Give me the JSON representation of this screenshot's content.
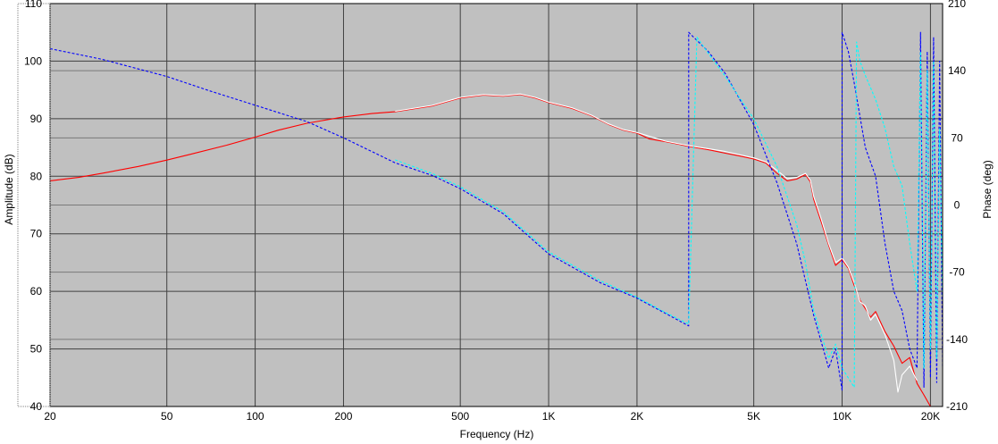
{
  "chart_data": {
    "type": "line",
    "xlabel": "Frequency (Hz)",
    "ylabel": "Amplitude (dB)",
    "y2label": "Phase (deg)",
    "xscale": "log",
    "xlim": [
      20,
      22000
    ],
    "ylim": [
      40,
      110
    ],
    "y2lim": [
      -210,
      210
    ],
    "grid": true,
    "x_ticks": [
      {
        "value": 20,
        "label": "20"
      },
      {
        "value": 50,
        "label": "50"
      },
      {
        "value": 100,
        "label": "100"
      },
      {
        "value": 200,
        "label": "200"
      },
      {
        "value": 500,
        "label": "500"
      },
      {
        "value": 1000,
        "label": "1K"
      },
      {
        "value": 2000,
        "label": "2K"
      },
      {
        "value": 5000,
        "label": "5K"
      },
      {
        "value": 10000,
        "label": "10K"
      },
      {
        "value": 20000,
        "label": "20K"
      }
    ],
    "y_ticks": [
      {
        "value": 40,
        "label": "40"
      },
      {
        "value": 50,
        "label": "50"
      },
      {
        "value": 60,
        "label": "60"
      },
      {
        "value": 70,
        "label": "70"
      },
      {
        "value": 80,
        "label": "80"
      },
      {
        "value": 90,
        "label": "90"
      },
      {
        "value": 100,
        "label": "100"
      },
      {
        "value": 110,
        "label": "110"
      }
    ],
    "y2_ticks": [
      {
        "value": -210,
        "label": "-210"
      },
      {
        "value": -140,
        "label": "-140"
      },
      {
        "value": -70,
        "label": "-70"
      },
      {
        "value": 0,
        "label": "0"
      },
      {
        "value": 70,
        "label": "70"
      },
      {
        "value": 140,
        "label": "140"
      },
      {
        "value": 210,
        "label": "210"
      }
    ],
    "colors": {
      "plot_background": "#c0c0c0",
      "grid": "#404040",
      "amplitude_a": "#ff0000",
      "amplitude_b": "#ffffff",
      "phase_a": "#0000ff",
      "phase_b": "#00ffff"
    },
    "series": [
      {
        "axis": "left",
        "style": "solid",
        "color": "#ff0000",
        "x": [
          20,
          25,
          30,
          40,
          50,
          60,
          80,
          100,
          120,
          150,
          200,
          250,
          300,
          400,
          500,
          600,
          700,
          800,
          900,
          1000,
          1200,
          1400,
          1600,
          1800,
          2000,
          2200,
          2500,
          3000,
          3500,
          4000,
          4500,
          5000,
          5500,
          6000,
          6500,
          7000,
          7500,
          7800,
          8000,
          8500,
          9000,
          9500,
          10000,
          10500,
          11000,
          11500,
          12000,
          12500,
          13000,
          14000,
          15000,
          16000,
          17000,
          18000,
          19000,
          20000
        ],
        "y": [
          79.2,
          79.8,
          80.5,
          81.7,
          82.8,
          83.8,
          85.4,
          86.8,
          88.0,
          89.2,
          90.3,
          90.9,
          91.2,
          92.2,
          93.6,
          94.1,
          93.9,
          94.2,
          93.6,
          92.8,
          91.8,
          90.5,
          89.0,
          88.0,
          87.5,
          86.5,
          86.0,
          85.2,
          84.6,
          84.0,
          83.5,
          83.0,
          82.3,
          80.5,
          79.2,
          79.5,
          80.3,
          79.0,
          76.0,
          72.0,
          68.0,
          64.5,
          65.5,
          64.0,
          61.0,
          58.5,
          57.0,
          55.5,
          56.5,
          53.0,
          50.5,
          47.5,
          48.5,
          44.0,
          42.0,
          40.0
        ]
      },
      {
        "axis": "left",
        "style": "solid",
        "color": "#ffffff",
        "x": [
          300,
          400,
          500,
          600,
          700,
          800,
          900,
          1000,
          1200,
          1400,
          1600,
          1800,
          2000,
          2500,
          3000,
          3500,
          4000,
          5000,
          5500,
          6000,
          6500,
          7000,
          7500,
          7800,
          8000,
          8500,
          9000,
          9500,
          10000,
          10500,
          11000,
          11500,
          12000,
          12500,
          13000,
          14000,
          15000,
          15500,
          16000,
          17000,
          18000
        ],
        "y": [
          91.3,
          92.3,
          93.7,
          94.2,
          94.0,
          94.3,
          93.7,
          92.9,
          91.9,
          90.6,
          89.1,
          88.1,
          87.6,
          86.1,
          85.3,
          84.8,
          84.3,
          83.2,
          82.5,
          81.0,
          79.6,
          79.8,
          80.5,
          79.3,
          76.5,
          72.5,
          68.3,
          65.0,
          65.8,
          64.2,
          61.5,
          58.2,
          57.5,
          55.0,
          56.0,
          52.5,
          48.0,
          42.5,
          45.5,
          47.0,
          44.5
        ]
      },
      {
        "axis": "right",
        "style": "dashed",
        "color": "#0000ff",
        "x": [
          20,
          30,
          50,
          70,
          100,
          150,
          200,
          300,
          400,
          500,
          700,
          1000,
          1500,
          2000,
          2500,
          3000,
          3000,
          3500,
          4000,
          5000,
          6000,
          7000,
          8000,
          9000,
          9500,
          10000,
          10000,
          10500,
          11000,
          12000,
          13000,
          14000,
          15000,
          16000,
          17000,
          18000,
          18500,
          19000,
          19500,
          20000,
          20500,
          21000,
          21500,
          22000
        ],
        "y": [
          163,
          152,
          134,
          119,
          104,
          87,
          70,
          44,
          31,
          17,
          -9,
          -51,
          -81,
          -97,
          -113,
          -126,
          180,
          160,
          137,
          84,
          23,
          -40,
          -115,
          -170,
          -150,
          -193,
          180,
          160,
          127,
          60,
          30,
          -40,
          -90,
          -110,
          -150,
          -170,
          180,
          -190,
          160,
          -180,
          175,
          -185,
          150,
          -170
        ]
      },
      {
        "axis": "right",
        "style": "dashed",
        "color": "#00ffff",
        "x": [
          300,
          400,
          500,
          700,
          1000,
          1500,
          2000,
          2500,
          3000,
          3200,
          3500,
          4000,
          5000,
          6000,
          7000,
          7500,
          8000,
          9000,
          9500,
          10000,
          11000,
          11200,
          11500,
          12000,
          13000,
          14000,
          15000,
          16000,
          17000,
          18000,
          18500,
          19000,
          19500,
          20000,
          20500,
          21000,
          21500,
          22000
        ],
        "y": [
          47,
          33,
          19,
          -7,
          -49,
          -79,
          -96,
          -112,
          -124,
          175,
          158,
          134,
          90,
          40,
          -20,
          -60,
          -110,
          -160,
          -145,
          -170,
          -190,
          170,
          150,
          135,
          110,
          80,
          40,
          20,
          -40,
          -90,
          160,
          -170,
          140,
          -150,
          150,
          -160,
          80,
          -100
        ]
      }
    ]
  }
}
